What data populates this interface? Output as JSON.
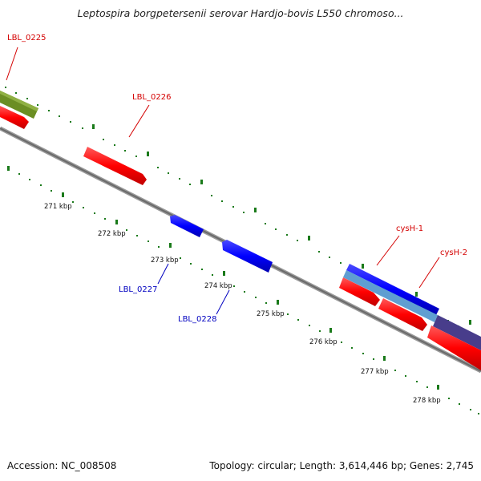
{
  "title": "Leptospira borgpetersenii serovar Hardjo-bovis L550 chromoso...",
  "footer": {
    "accession": "Accession: NC_008508",
    "summary": "Topology: circular; Length: 3,614,446 bp; Genes: 2,745"
  },
  "gene_labels": [
    {
      "id": "lbl-0225",
      "text": "LBL_0225",
      "color": "#d40000"
    },
    {
      "id": "lbl-0226",
      "text": "LBL_0226",
      "color": "#d40000"
    },
    {
      "id": "lbl-0227",
      "text": "LBL_0227",
      "color": "#0000c0"
    },
    {
      "id": "lbl-0228",
      "text": "LBL_0228",
      "color": "#0000c0"
    },
    {
      "id": "cysh-1",
      "text": "cysH-1",
      "color": "#d40000"
    },
    {
      "id": "cysh-2",
      "text": "cysH-2",
      "color": "#d40000"
    }
  ],
  "ticks": [
    "271 kbp",
    "272 kbp",
    "273 kbp",
    "274 kbp",
    "275 kbp",
    "276 kbp",
    "277 kbp",
    "278 kbp"
  ],
  "colors": {
    "forward_gene": "#ff0000",
    "reverse_gene": "#0000ff",
    "olive_feature": "#6b8e23",
    "light_blue_feature": "#5f9ed1",
    "purple_feature": "#483d8b",
    "backbone": "#888888",
    "tick_marks": "#1a7a1a"
  }
}
